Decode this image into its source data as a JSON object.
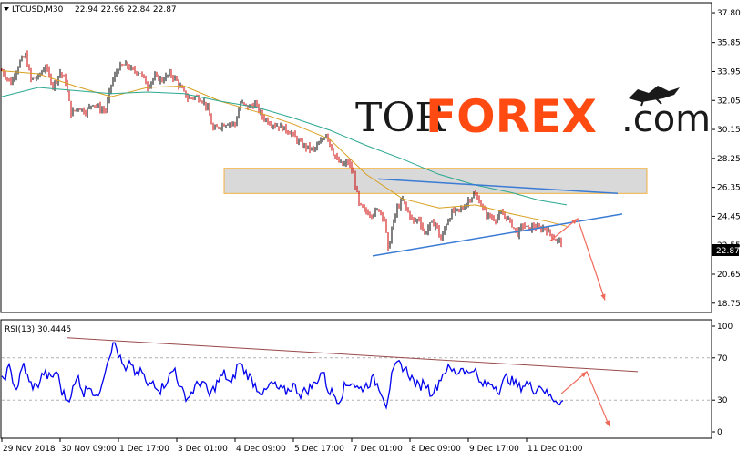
{
  "chart_data": [
    {
      "type": "candlestick",
      "symbol_label": "LTCUSD,M30",
      "ohlc_label": "22.94 22.96 22.84 22.87",
      "last_price": "22.87",
      "ylim": [
        18.2,
        38.4
      ],
      "y_ticks": [
        "37.80",
        "35.85",
        "33.95",
        "32.05",
        "30.15",
        "28.25",
        "26.35",
        "24.45",
        "22.55",
        "20.65",
        "18.75"
      ],
      "x_ticks": [
        "29 Nov 2018",
        "30 Nov 09:00",
        "1 Dec 17:00",
        "3 Dec 01:00",
        "4 Dec 09:00",
        "5 Dec 17:00",
        "7 Dec 01:00",
        "8 Dec 09:00",
        "9 Dec 17:00",
        "11 Dec 01:00"
      ],
      "price_path": [
        [
          0,
          34.0
        ],
        [
          10,
          33.2
        ],
        [
          20,
          34.6
        ],
        [
          26,
          35.0
        ],
        [
          32,
          33.4
        ],
        [
          40,
          33.6
        ],
        [
          48,
          34.3
        ],
        [
          56,
          33.0
        ],
        [
          64,
          33.9
        ],
        [
          70,
          33.3
        ],
        [
          76,
          31.2
        ],
        [
          84,
          31.6
        ],
        [
          92,
          31.3
        ],
        [
          100,
          31.9
        ],
        [
          108,
          31.5
        ],
        [
          114,
          31.4
        ],
        [
          120,
          33.1
        ],
        [
          128,
          34.2
        ],
        [
          136,
          34.4
        ],
        [
          144,
          34.0
        ],
        [
          152,
          33.9
        ],
        [
          160,
          33.0
        ],
        [
          168,
          33.6
        ],
        [
          176,
          33.4
        ],
        [
          184,
          33.8
        ],
        [
          190,
          33.5
        ],
        [
          196,
          32.9
        ],
        [
          204,
          32.2
        ],
        [
          212,
          32.3
        ],
        [
          220,
          32.1
        ],
        [
          226,
          31.5
        ],
        [
          232,
          30.1
        ],
        [
          240,
          30.4
        ],
        [
          248,
          30.6
        ],
        [
          256,
          30.5
        ],
        [
          262,
          31.9
        ],
        [
          270,
          31.6
        ],
        [
          278,
          31.8
        ],
        [
          286,
          31.0
        ],
        [
          294,
          30.6
        ],
        [
          302,
          30.4
        ],
        [
          310,
          30.2
        ],
        [
          318,
          29.9
        ],
        [
          326,
          29.3
        ],
        [
          334,
          29.0
        ],
        [
          342,
          28.8
        ],
        [
          350,
          29.3
        ],
        [
          356,
          29.9
        ],
        [
          362,
          28.9
        ],
        [
          368,
          28.1
        ],
        [
          374,
          27.8
        ],
        [
          380,
          28.0
        ],
        [
          386,
          27.2
        ],
        [
          392,
          25.2
        ],
        [
          398,
          24.8
        ],
        [
          406,
          24.6
        ],
        [
          414,
          24.9
        ],
        [
          420,
          24.3
        ],
        [
          424,
          22.2
        ],
        [
          428,
          23.6
        ],
        [
          434,
          25.0
        ],
        [
          440,
          25.5
        ],
        [
          446,
          24.7
        ],
        [
          452,
          24.1
        ],
        [
          458,
          24.3
        ],
        [
          464,
          23.3
        ],
        [
          470,
          23.9
        ],
        [
          476,
          24.0
        ],
        [
          482,
          22.9
        ],
        [
          488,
          24.0
        ],
        [
          494,
          24.7
        ],
        [
          500,
          24.8
        ],
        [
          506,
          25.0
        ],
        [
          512,
          25.5
        ],
        [
          518,
          25.9
        ],
        [
          524,
          25.5
        ],
        [
          530,
          24.7
        ],
        [
          536,
          24.4
        ],
        [
          542,
          24.3
        ],
        [
          548,
          24.6
        ],
        [
          554,
          24.4
        ],
        [
          560,
          23.9
        ],
        [
          566,
          23.3
        ],
        [
          572,
          23.9
        ],
        [
          578,
          23.6
        ],
        [
          584,
          23.8
        ],
        [
          590,
          23.6
        ],
        [
          596,
          23.7
        ],
        [
          602,
          23.3
        ],
        [
          608,
          22.9
        ],
        [
          614,
          22.8
        ]
      ],
      "ma_fast": [
        [
          0,
          34.0
        ],
        [
          40,
          33.8
        ],
        [
          80,
          33.0
        ],
        [
          120,
          32.3
        ],
        [
          160,
          32.9
        ],
        [
          200,
          33.0
        ],
        [
          240,
          32.0
        ],
        [
          280,
          31.3
        ],
        [
          320,
          30.5
        ],
        [
          360,
          29.5
        ],
        [
          400,
          27.2
        ],
        [
          440,
          25.6
        ],
        [
          480,
          25.0
        ],
        [
          520,
          25.2
        ],
        [
          560,
          24.6
        ],
        [
          600,
          24.1
        ],
        [
          620,
          23.8
        ]
      ],
      "ma_slow": [
        [
          0,
          32.3
        ],
        [
          40,
          32.9
        ],
        [
          80,
          32.7
        ],
        [
          120,
          32.5
        ],
        [
          160,
          32.6
        ],
        [
          200,
          32.5
        ],
        [
          240,
          32.0
        ],
        [
          280,
          31.6
        ],
        [
          320,
          30.9
        ],
        [
          360,
          30.1
        ],
        [
          400,
          29.1
        ],
        [
          440,
          28.2
        ],
        [
          480,
          27.2
        ],
        [
          520,
          26.5
        ],
        [
          560,
          26.0
        ],
        [
          590,
          25.5
        ],
        [
          620,
          25.2
        ]
      ],
      "resistance_zone": {
        "x_start": 244,
        "x_end": 708,
        "y_low": 25.95,
        "y_high": 27.6
      },
      "trendlines": [
        {
          "name": "upper",
          "points": [
            [
              413,
              26.9
            ],
            [
              676,
              25.95
            ]
          ]
        },
        {
          "name": "lower",
          "points": [
            [
              407,
              21.85
            ],
            [
              681,
              24.6
            ]
          ]
        }
      ],
      "forecast_arrow": [
        [
          602,
          22.85
        ],
        [
          632,
          24.3
        ],
        [
          662,
          18.95
        ]
      ]
    },
    {
      "type": "line",
      "title": "RSI(13) 30.4445",
      "ylim": [
        0,
        100
      ],
      "y_ticks": [
        "100",
        "70",
        "30",
        "0"
      ],
      "reference_levels": [
        30,
        70
      ],
      "rsi_path": [
        [
          0,
          48
        ],
        [
          8,
          60
        ],
        [
          16,
          40
        ],
        [
          24,
          64
        ],
        [
          30,
          46
        ],
        [
          38,
          42
        ],
        [
          46,
          56
        ],
        [
          54,
          50
        ],
        [
          60,
          58
        ],
        [
          66,
          38
        ],
        [
          72,
          30
        ],
        [
          78,
          40
        ],
        [
          84,
          52
        ],
        [
          90,
          36
        ],
        [
          96,
          46
        ],
        [
          104,
          30
        ],
        [
          112,
          55
        ],
        [
          118,
          74
        ],
        [
          124,
          84
        ],
        [
          130,
          68
        ],
        [
          136,
          56
        ],
        [
          142,
          66
        ],
        [
          148,
          52
        ],
        [
          154,
          58
        ],
        [
          160,
          42
        ],
        [
          166,
          48
        ],
        [
          174,
          40
        ],
        [
          182,
          50
        ],
        [
          190,
          60
        ],
        [
          196,
          40
        ],
        [
          204,
          32
        ],
        [
          212,
          42
        ],
        [
          220,
          48
        ],
        [
          228,
          34
        ],
        [
          236,
          46
        ],
        [
          244,
          55
        ],
        [
          252,
          44
        ],
        [
          260,
          66
        ],
        [
          266,
          58
        ],
        [
          272,
          52
        ],
        [
          280,
          42
        ],
        [
          288,
          36
        ],
        [
          296,
          46
        ],
        [
          304,
          40
        ],
        [
          312,
          38
        ],
        [
          320,
          44
        ],
        [
          328,
          36
        ],
        [
          336,
          40
        ],
        [
          344,
          46
        ],
        [
          352,
          58
        ],
        [
          358,
          40
        ],
        [
          364,
          36
        ],
        [
          370,
          30
        ],
        [
          376,
          42
        ],
        [
          384,
          48
        ],
        [
          392,
          40
        ],
        [
          400,
          44
        ],
        [
          408,
          50
        ],
        [
          416,
          40
        ],
        [
          422,
          26
        ],
        [
          428,
          52
        ],
        [
          434,
          64
        ],
        [
          440,
          62
        ],
        [
          446,
          56
        ],
        [
          452,
          48
        ],
        [
          458,
          42
        ],
        [
          464,
          48
        ],
        [
          470,
          38
        ],
        [
          476,
          40
        ],
        [
          482,
          52
        ],
        [
          488,
          60
        ],
        [
          494,
          58
        ],
        [
          500,
          56
        ],
        [
          506,
          62
        ],
        [
          512,
          54
        ],
        [
          518,
          62
        ],
        [
          524,
          46
        ],
        [
          530,
          44
        ],
        [
          538,
          46
        ],
        [
          546,
          40
        ],
        [
          554,
          52
        ],
        [
          560,
          48
        ],
        [
          568,
          42
        ],
        [
          576,
          46
        ],
        [
          584,
          40
        ],
        [
          592,
          44
        ],
        [
          598,
          36
        ],
        [
          604,
          32
        ],
        [
          610,
          30
        ],
        [
          616,
          28
        ]
      ],
      "trendline": [
        [
          72,
          89
        ],
        [
          698,
          57
        ]
      ],
      "forecast_arrow": [
        [
          614,
          36
        ],
        [
          642,
          57
        ],
        [
          667,
          5
        ]
      ]
    }
  ],
  "watermark": {
    "prefix": "TOR",
    "brand": "FOREX",
    "suffix": ".com",
    "colors": {
      "brand": "#ff4a12",
      "dark": "#1a1a1a"
    }
  },
  "colors": {
    "bull_candle": "#000000",
    "bear_candle": "#cc0000",
    "rsi_line": "#0000ee",
    "ma_fast": "#d8a020",
    "ma_slow": "#2aa890",
    "trendline": "#3a7bd5",
    "rsi_trendline": "#9a4a4a",
    "forecast": "#f06a5a",
    "zone": "#d9d9d9",
    "zone_border": "#f0b040"
  }
}
